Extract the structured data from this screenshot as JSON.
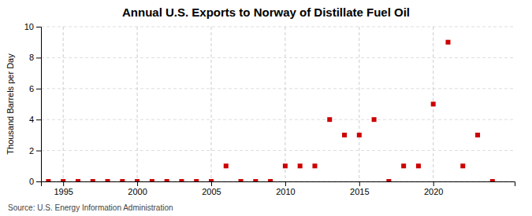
{
  "chart_data": {
    "type": "scatter",
    "title": "Annual U.S. Exports to Norway of Distillate Fuel Oil",
    "ylabel": "Thousand Barrels per Day",
    "annotation": "Source: U.S. Energy Information Administration",
    "x": [
      1994,
      1995,
      1996,
      1997,
      1998,
      1999,
      2000,
      2001,
      2002,
      2003,
      2004,
      2005,
      2006,
      2007,
      2008,
      2009,
      2010,
      2011,
      2012,
      2013,
      2014,
      2015,
      2016,
      2017,
      2018,
      2019,
      2020,
      2021,
      2022,
      2023,
      2024
    ],
    "values": [
      0,
      0,
      0,
      0,
      0,
      0,
      0,
      0,
      0,
      0,
      0,
      0,
      1,
      0,
      0,
      0,
      1,
      1,
      1,
      4,
      3,
      3,
      4,
      0,
      1,
      1,
      5,
      9,
      1,
      3,
      0
    ],
    "color": "#cc0000",
    "marker": "square",
    "xlim": [
      1993.5,
      2025.5
    ],
    "ylim": [
      0,
      10
    ],
    "xticks": [
      1995,
      2000,
      2005,
      2010,
      2015,
      2020
    ],
    "yticks": [
      0,
      2,
      4,
      6,
      8,
      10
    ],
    "grid": true
  }
}
